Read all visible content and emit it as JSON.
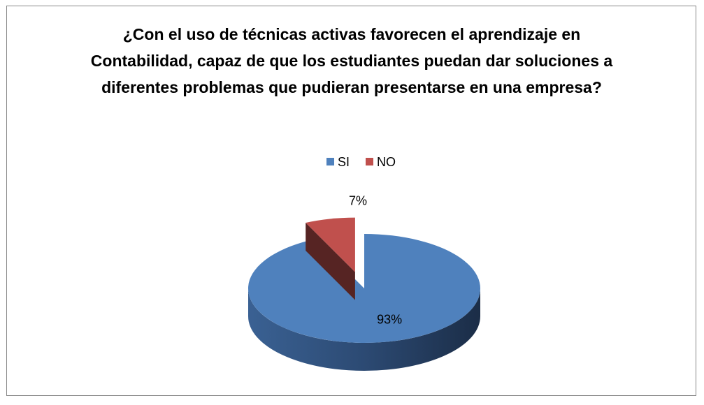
{
  "chart_data": {
    "type": "pie",
    "title": "¿Con el uso de técnicas activas favorecen el aprendizaje en Contabilidad, capaz de que los estudiantes puedan dar soluciones a diferentes problemas que pudieran presentarse en una empresa?",
    "categories": [
      "SI",
      "NO"
    ],
    "values": [
      93,
      7
    ],
    "value_labels": [
      "93%",
      "7%"
    ],
    "colors": [
      "#4f81bd",
      "#c0504d"
    ],
    "legend": "top"
  }
}
